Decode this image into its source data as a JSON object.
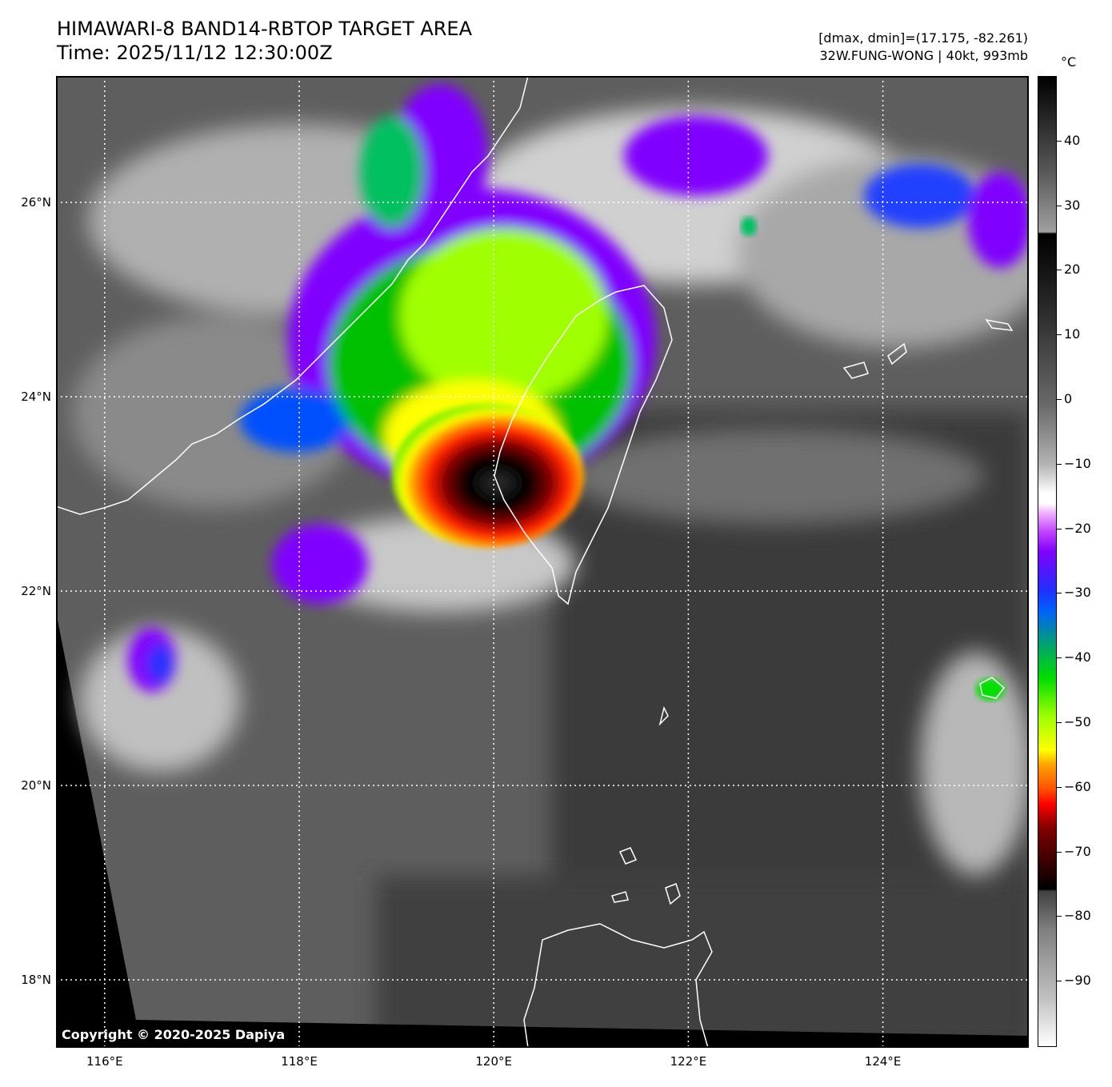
{
  "title": {
    "line1": "HIMAWARI-8 BAND14-RBTOP TARGET AREA",
    "line2": "Time: 2025/11/12 12:30:00Z"
  },
  "info": {
    "line1": "[dmax, dmin]=(17.175, -82.261)",
    "line2": "32W.FUNG-WONG | 40kt, 993mb"
  },
  "map": {
    "lon_range": [
      115.5,
      125.5
    ],
    "lat_range": [
      17.3,
      27.3
    ],
    "lon_ticks": [
      {
        "value": 116,
        "label": "116°E"
      },
      {
        "value": 118,
        "label": "118°E"
      },
      {
        "value": 120,
        "label": "120°E"
      },
      {
        "value": 122,
        "label": "122°E"
      },
      {
        "value": 124,
        "label": "124°E"
      }
    ],
    "lat_ticks": [
      {
        "value": 26,
        "label": "26°N"
      },
      {
        "value": 24,
        "label": "24°N"
      },
      {
        "value": 22,
        "label": "22°N"
      },
      {
        "value": 20,
        "label": "20°N"
      },
      {
        "value": 18,
        "label": "18°N"
      }
    ],
    "grid": "dotted white",
    "coastline_color": "#ffffff"
  },
  "colorbar": {
    "unit": "°C",
    "range": [
      -100,
      50
    ],
    "ticks": [
      40,
      30,
      20,
      10,
      0,
      -10,
      -20,
      -30,
      -40,
      -50,
      -60,
      -70,
      -80,
      -90
    ],
    "tick_labels": [
      "40",
      "30",
      "20",
      "10",
      "0",
      "−10",
      "−20",
      "−30",
      "−40",
      "−50",
      "−60",
      "−70",
      "−80",
      "−90"
    ]
  },
  "copyright": "Copyright © 2020-2025 Dapiya"
}
